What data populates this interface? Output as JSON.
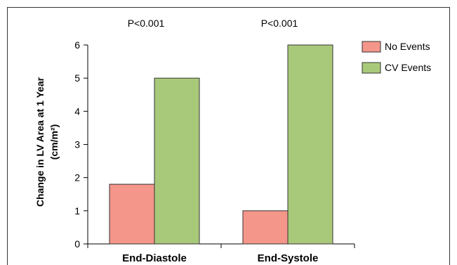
{
  "chart_data": {
    "type": "bar",
    "categories": [
      "End-Diastole",
      "End-Systole"
    ],
    "series": [
      {
        "name": "No Events",
        "values": [
          1.8,
          1.0
        ],
        "color": "#f4968a"
      },
      {
        "name": "CV Events",
        "values": [
          5.0,
          6.0
        ],
        "color": "#a9c97a"
      }
    ],
    "title": "",
    "xlabel": "",
    "ylabel": "Change in LV Area at 1 Year",
    "ylabel_unit": "(cm/m²)",
    "ylim": [
      0,
      6
    ],
    "yticks": [
      "0",
      "1",
      "2",
      "3",
      "4",
      "5",
      "6"
    ],
    "annotations": [
      "P<0.001",
      "P<0.001"
    ],
    "legend_position": "top-right",
    "grid": false
  }
}
